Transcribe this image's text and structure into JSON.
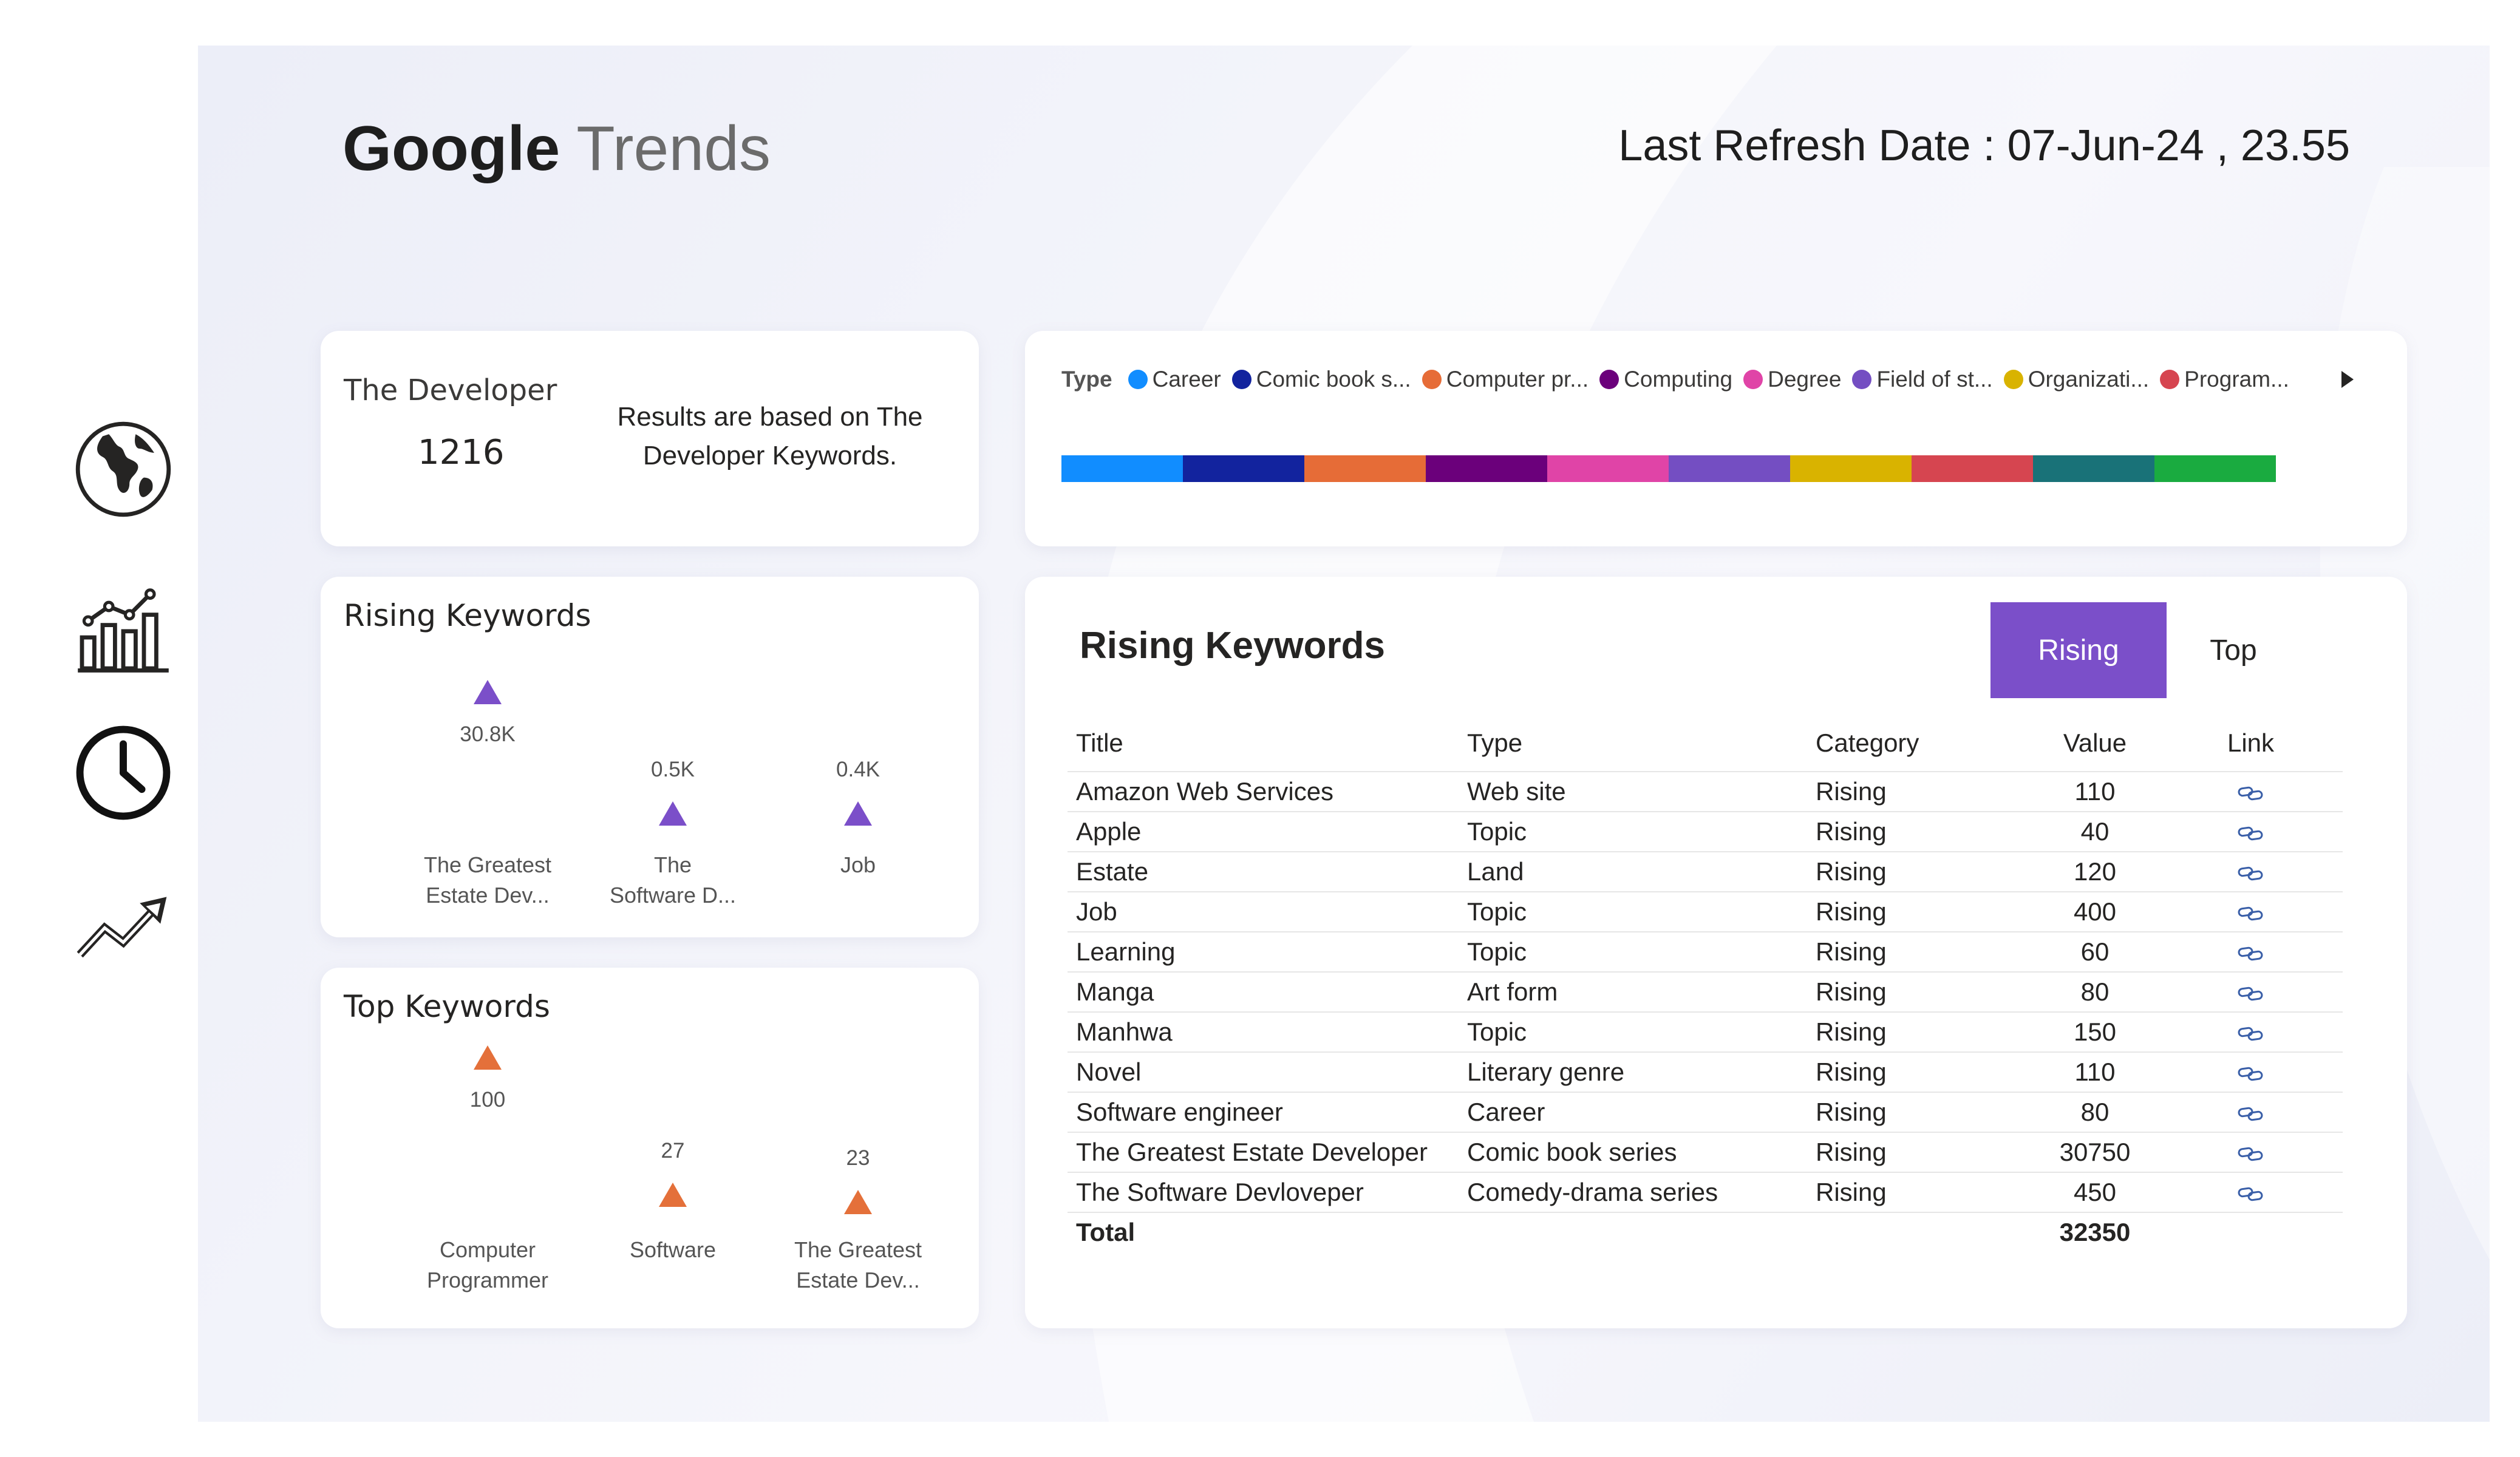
{
  "header": {
    "brand": "Google",
    "product": "Trends",
    "refresh_label": "Last Refresh Date : 07-Jun-24 , 23.55"
  },
  "nav": {
    "items": [
      {
        "icon": "globe-icon"
      },
      {
        "icon": "bar-chart-icon"
      },
      {
        "icon": "clock-icon"
      },
      {
        "icon": "trending-up-icon"
      }
    ]
  },
  "kpi": {
    "label": "The Developer",
    "value": "1216",
    "note": "Results are based on The Developer Keywords."
  },
  "rising_card": {
    "title": "Rising Keywords",
    "items": [
      {
        "value": "30.8K",
        "label_line1": "The Greatest",
        "label_line2": "Estate Dev..."
      },
      {
        "value": "0.5K",
        "label_line1": "The",
        "label_line2": "Software D..."
      },
      {
        "value": "0.4K",
        "label_line1": "Job",
        "label_line2": ""
      }
    ],
    "marker_color": "#7b4fc9"
  },
  "top_card": {
    "title": "Top Keywords",
    "items": [
      {
        "value": "100",
        "label_line1": "Computer",
        "label_line2": "Programmer"
      },
      {
        "value": "27",
        "label_line1": "Software",
        "label_line2": ""
      },
      {
        "value": "23",
        "label_line1": "The Greatest",
        "label_line2": "Estate Dev..."
      }
    ],
    "marker_color": "#e4703a"
  },
  "legend": {
    "title": "Type",
    "items": [
      {
        "label": "Career",
        "color": "#118dff"
      },
      {
        "label": "Comic book s...",
        "color": "#12239e"
      },
      {
        "label": "Computer pr...",
        "color": "#e66c37"
      },
      {
        "label": "Computing",
        "color": "#6b007b"
      },
      {
        "label": "Degree",
        "color": "#e044a7"
      },
      {
        "label": "Field of st...",
        "color": "#744ec2"
      },
      {
        "label": "Organizati...",
        "color": "#d9b300"
      },
      {
        "label": "Program...",
        "color": "#d64550"
      }
    ],
    "bar_segments": [
      {
        "color": "#118dff",
        "share": 1
      },
      {
        "color": "#12239e",
        "share": 1
      },
      {
        "color": "#e66c37",
        "share": 1
      },
      {
        "color": "#6b007b",
        "share": 1
      },
      {
        "color": "#e044a7",
        "share": 1
      },
      {
        "color": "#744ec2",
        "share": 1
      },
      {
        "color": "#d9b300",
        "share": 1
      },
      {
        "color": "#d64550",
        "share": 1
      },
      {
        "color": "#197278",
        "share": 1
      },
      {
        "color": "#1aab40",
        "share": 1
      }
    ]
  },
  "table": {
    "title": "Rising Keywords",
    "toggle_active": "Rising",
    "toggle_inactive": "Top",
    "columns": {
      "title": "Title",
      "type": "Type",
      "category": "Category",
      "value": "Value",
      "link": "Link"
    },
    "rows": [
      {
        "title": "Amazon Web Services",
        "type": "Web site",
        "category": "Rising",
        "value": "110"
      },
      {
        "title": "Apple",
        "type": "Topic",
        "category": "Rising",
        "value": "40"
      },
      {
        "title": "Estate",
        "type": "Land",
        "category": "Rising",
        "value": "120"
      },
      {
        "title": "Job",
        "type": "Topic",
        "category": "Rising",
        "value": "400"
      },
      {
        "title": "Learning",
        "type": "Topic",
        "category": "Rising",
        "value": "60"
      },
      {
        "title": "Manga",
        "type": "Art form",
        "category": "Rising",
        "value": "80"
      },
      {
        "title": "Manhwa",
        "type": "Topic",
        "category": "Rising",
        "value": "150"
      },
      {
        "title": "Novel",
        "type": "Literary genre",
        "category": "Rising",
        "value": "110"
      },
      {
        "title": "Software engineer",
        "type": "Career",
        "category": "Rising",
        "value": "80"
      },
      {
        "title": "The Greatest Estate Developer",
        "type": "Comic book series",
        "category": "Rising",
        "value": "30750"
      },
      {
        "title": "The Software Devloveper",
        "type": "Comedy-drama series",
        "category": "Rising",
        "value": "450"
      }
    ],
    "total_label": "Total",
    "total_value": "32350",
    "link_icon": "link-icon"
  }
}
